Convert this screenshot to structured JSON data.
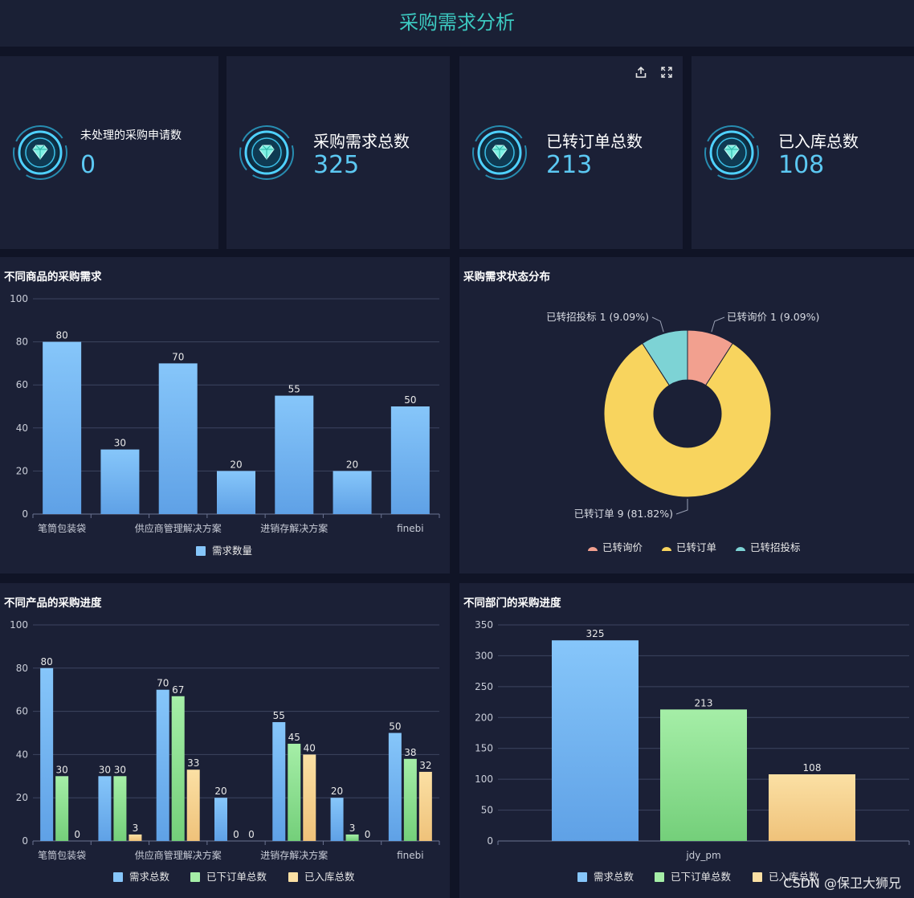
{
  "header": {
    "title": "采购需求分析"
  },
  "kpis": [
    {
      "label": "未处理的采购申请数",
      "value": "0"
    },
    {
      "label": "采购需求总数",
      "value": "325"
    },
    {
      "label": "已转订单总数",
      "value": "213"
    },
    {
      "label": "已入库总数",
      "value": "108"
    }
  ],
  "toolbar": {
    "export_icon": "export-icon",
    "fullscreen_icon": "fullscreen-icon"
  },
  "panels": {
    "p1": {
      "title": "不同商品的采购需求"
    },
    "p2": {
      "title": "采购需求状态分布"
    },
    "p3": {
      "title": "不同产品的采购进度"
    },
    "p4": {
      "title": "不同部门的采购进度"
    }
  },
  "colors": {
    "blue": "#7cbcf5",
    "green": "#8fdc91",
    "yellow": "#f7d08a",
    "pie_red": "#f2a08f",
    "pie_yellow": "#f8d45e",
    "pie_cyan": "#7dd3d5",
    "accent": "#3cc9c0"
  },
  "chart_data": [
    {
      "type": "bar",
      "categories": [
        "笔筒包装袋",
        "",
        "供应商管理解决方案",
        "",
        "进销存解决方案",
        "",
        "finebi"
      ],
      "series": [
        {
          "name": "需求数量",
          "values": [
            80,
            30,
            70,
            20,
            55,
            20,
            50
          ]
        }
      ],
      "ylim": [
        0,
        100
      ],
      "yticks": [
        0,
        20,
        40,
        60,
        80,
        100
      ],
      "legend_position": "bottom-center"
    },
    {
      "type": "pie",
      "slices": [
        {
          "name": "已转询价",
          "value": 1,
          "label": "已转询价 1 (9.09%)"
        },
        {
          "name": "已转订单",
          "value": 9,
          "label": "已转订单 9 (81.82%)"
        },
        {
          "name": "已转招投标",
          "value": 1,
          "label": "已转招投标 1 (9.09%)"
        }
      ],
      "legend": [
        "已转询价",
        "已转订单",
        "已转招投标"
      ],
      "legend_position": "bottom-center"
    },
    {
      "type": "bar",
      "categories": [
        "笔筒包装袋",
        "",
        "供应商管理解决方案",
        "",
        "进销存解决方案",
        "",
        "finebi"
      ],
      "series": [
        {
          "name": "需求总数",
          "values": [
            80,
            30,
            70,
            20,
            55,
            20,
            50
          ]
        },
        {
          "name": "已下订单总数",
          "values": [
            30,
            30,
            67,
            0,
            45,
            3,
            38
          ]
        },
        {
          "name": "已入库总数",
          "values": [
            0,
            3,
            33,
            0,
            40,
            0,
            32
          ]
        }
      ],
      "ylim": [
        0,
        100
      ],
      "yticks": [
        0,
        20,
        40,
        60,
        80,
        100
      ],
      "legend_position": "bottom-center"
    },
    {
      "type": "bar",
      "categories": [
        "jdy_pm"
      ],
      "series": [
        {
          "name": "需求总数",
          "values": [
            325
          ]
        },
        {
          "name": "已下订单总数",
          "values": [
            213
          ]
        },
        {
          "name": "已入库总数",
          "values": [
            108
          ]
        }
      ],
      "ylim": [
        0,
        350
      ],
      "yticks": [
        0,
        50,
        100,
        150,
        200,
        250,
        300,
        350
      ],
      "legend_position": "bottom-center"
    }
  ],
  "watermark": "CSDN @保卫大狮兄"
}
